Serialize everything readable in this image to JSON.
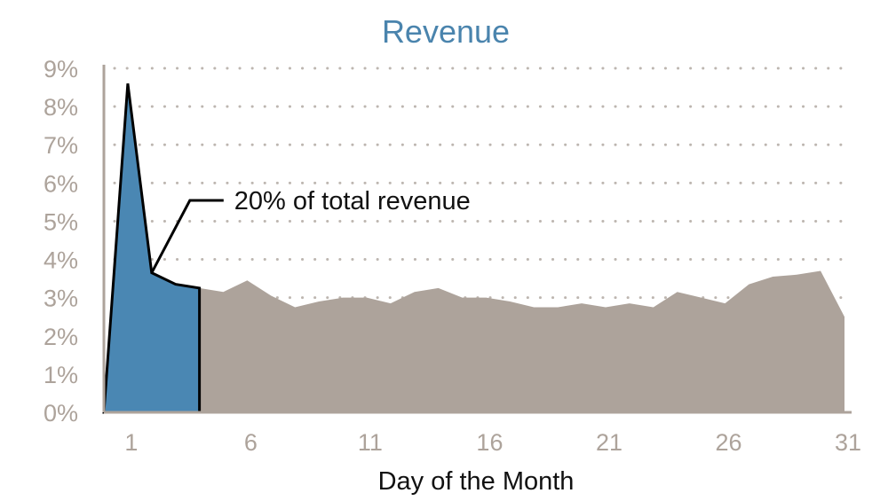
{
  "chart_data": {
    "type": "area",
    "title": "Revenue",
    "xlabel": "Day of the Month",
    "ylabel": "",
    "x_ticks": [
      1,
      6,
      11,
      16,
      21,
      26,
      31
    ],
    "y_ticks": [
      "0%",
      "1%",
      "2%",
      "3%",
      "4%",
      "5%",
      "6%",
      "7%",
      "8%",
      "9%"
    ],
    "xlim": [
      0,
      31
    ],
    "ylim": [
      0,
      9
    ],
    "y_unit": "%",
    "grid": "horizontal-dotted",
    "series": [
      {
        "values": [
          [
            0,
            0
          ],
          [
            1,
            8.6
          ],
          [
            2,
            3.65
          ],
          [
            3,
            3.35
          ],
          [
            4,
            3.25
          ],
          [
            5,
            3.15
          ],
          [
            6,
            3.45
          ],
          [
            7,
            3.05
          ],
          [
            8,
            2.75
          ],
          [
            9,
            2.9
          ],
          [
            10,
            3.0
          ],
          [
            11,
            3.0
          ],
          [
            12,
            2.85
          ],
          [
            13,
            3.15
          ],
          [
            14,
            3.25
          ],
          [
            15,
            3.0
          ],
          [
            16,
            3.0
          ],
          [
            17,
            2.9
          ],
          [
            18,
            2.75
          ],
          [
            19,
            2.75
          ],
          [
            20,
            2.85
          ],
          [
            21,
            2.75
          ],
          [
            22,
            2.85
          ],
          [
            23,
            2.75
          ],
          [
            24,
            3.15
          ],
          [
            25,
            3.0
          ],
          [
            26,
            2.85
          ],
          [
            27,
            3.35
          ],
          [
            28,
            3.55
          ],
          [
            29,
            3.6
          ],
          [
            30,
            3.7
          ],
          [
            31,
            2.5
          ]
        ],
        "highlight_range": [
          0,
          4
        ]
      }
    ],
    "annotations": [
      {
        "text": "20% of total revenue",
        "x": 2,
        "y": 3.65
      }
    ],
    "colors": {
      "title": "#4a84ad",
      "highlight": "#4a87b3",
      "area": "#ada39b",
      "axis": "#ada39b",
      "tick_text": "#ada39b",
      "grid": "#bdb6b0",
      "label_text": "#111111"
    }
  }
}
